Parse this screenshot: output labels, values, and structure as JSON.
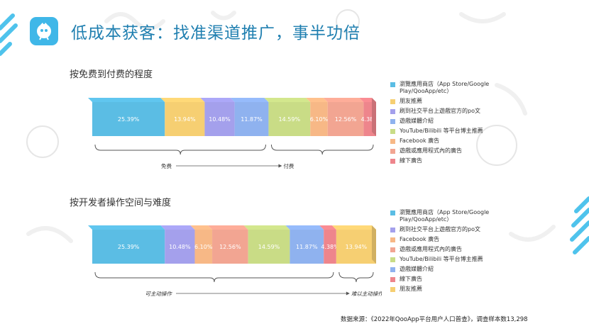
{
  "header": {
    "title": "低成本获客：找准渠道推广，事半功倍"
  },
  "colors": {
    "store": "#5bbde4",
    "friend": "#f6cf72",
    "social": "#a4a0ec",
    "media": "#8fb2ef",
    "video": "#c9dc86",
    "facebook": "#f7b886",
    "ads": "#f2a592",
    "offline": "#ee858c"
  },
  "chart_data": [
    {
      "type": "bar",
      "orientation": "horizontal-stacked",
      "title": "按免费到付费的程度",
      "series": [
        {
          "name": "瀏覽應用商店（App Store/Google Play/QooApp/etc）",
          "value": 25.39,
          "label": "25.39%",
          "color_key": "store"
        },
        {
          "name": "朋友推薦",
          "value": 13.94,
          "label": "13.94%",
          "color_key": "friend"
        },
        {
          "name": "刷到社交平台上遊戲官方的po文",
          "value": 10.48,
          "label": "10.48%",
          "color_key": "social"
        },
        {
          "name": "遊戲媒體介紹",
          "value": 11.87,
          "label": "11.87%",
          "color_key": "media"
        },
        {
          "name": "YouTube/Bilibili 等平台博主推薦",
          "value": 14.59,
          "label": "14.59%",
          "color_key": "video"
        },
        {
          "name": "Facebook 廣告",
          "value": 6.1,
          "label": "6.10%",
          "color_key": "facebook"
        },
        {
          "name": "遊戲或應用程式內的廣告",
          "value": 12.56,
          "label": "12.56%",
          "color_key": "ads"
        },
        {
          "name": "線下廣告",
          "value": 4.38,
          "label": "4.38%",
          "color_key": "offline"
        }
      ],
      "axis_left": "免费",
      "axis_right": "付费"
    },
    {
      "type": "bar",
      "orientation": "horizontal-stacked",
      "title": "按开发者操作空间与难度",
      "series": [
        {
          "name": "瀏覽應用商店（App Store/Google Play/QooApp/etc）",
          "value": 25.39,
          "label": "25.39%",
          "color_key": "store"
        },
        {
          "name": "刷到社交平台上遊戲官方的po文",
          "value": 10.48,
          "label": "10.48%",
          "color_key": "social"
        },
        {
          "name": "Facebook 廣告",
          "value": 6.1,
          "label": "6.10%",
          "color_key": "facebook"
        },
        {
          "name": "遊戲或應用程式內的廣告",
          "value": 12.56,
          "label": "12.56%",
          "color_key": "ads"
        },
        {
          "name": "YouTube/Bilibili 等平台博主推薦",
          "value": 14.59,
          "label": "14.59%",
          "color_key": "video"
        },
        {
          "name": "遊戲媒體介紹",
          "value": 11.87,
          "label": "11.87%",
          "color_key": "media"
        },
        {
          "name": "線下廣告",
          "value": 4.38,
          "label": "4.38%",
          "color_key": "offline"
        },
        {
          "name": "朋友推薦",
          "value": 13.94,
          "label": "13.94%",
          "color_key": "friend"
        }
      ],
      "axis_left": "可主动操作",
      "axis_right": "难以主动操作"
    }
  ],
  "source": "数据来源：《2022年QooApp平台用户人口普查》，调查样本数13,298"
}
